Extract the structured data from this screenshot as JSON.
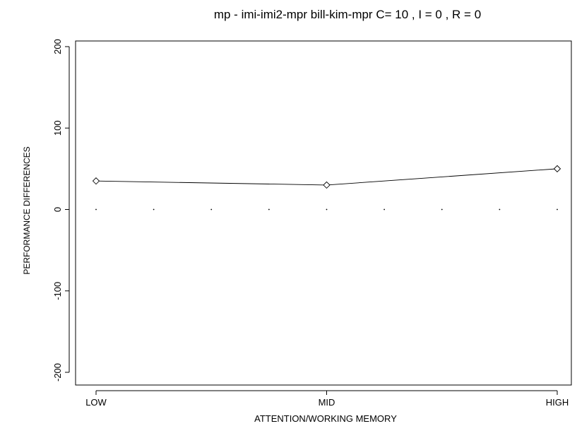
{
  "chart_data": {
    "type": "line",
    "title": "mp - imi-imi2-mpr bill-kim-mpr C= 10 , I = 0 , R = 0",
    "xlabel": "ATTENTION/WORKING MEMORY",
    "ylabel": "PERFORMANCE DIFFERENCES",
    "categories": [
      "LOW",
      "MID",
      "HIGH"
    ],
    "series": [
      {
        "values": [
          35,
          30,
          50
        ]
      }
    ],
    "ylim": [
      -200,
      200
    ],
    "yticks": [
      "-200",
      "-100",
      "0",
      "100",
      "200"
    ],
    "reference_line": {
      "y": 0,
      "style": "dotted"
    },
    "grid": false,
    "marker": "diamond",
    "colors": {
      "line": "#000000",
      "axis": "#000000",
      "background": "#ffffff"
    }
  }
}
